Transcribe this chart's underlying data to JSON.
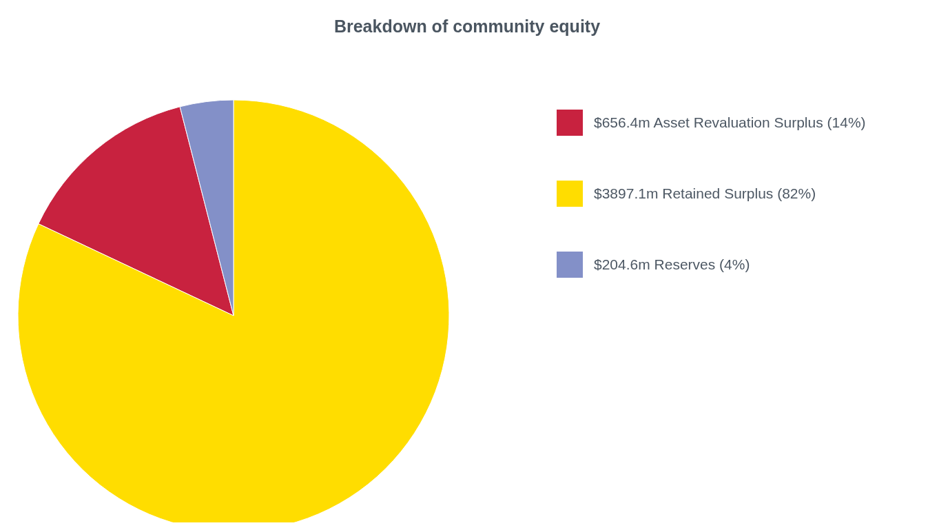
{
  "chart_data": {
    "type": "pie",
    "title": "Breakdown of community equity",
    "categories": [
      "$656.4m Asset Revaluation Surplus (14%)",
      "$3897.1m Retained Surplus (82%)",
      "$204.6m Reserves (4%)"
    ],
    "values": [
      14,
      82,
      4
    ],
    "colors": [
      "#c8223f",
      "#ffdd00",
      "#8390c8"
    ],
    "legend": "right"
  }
}
